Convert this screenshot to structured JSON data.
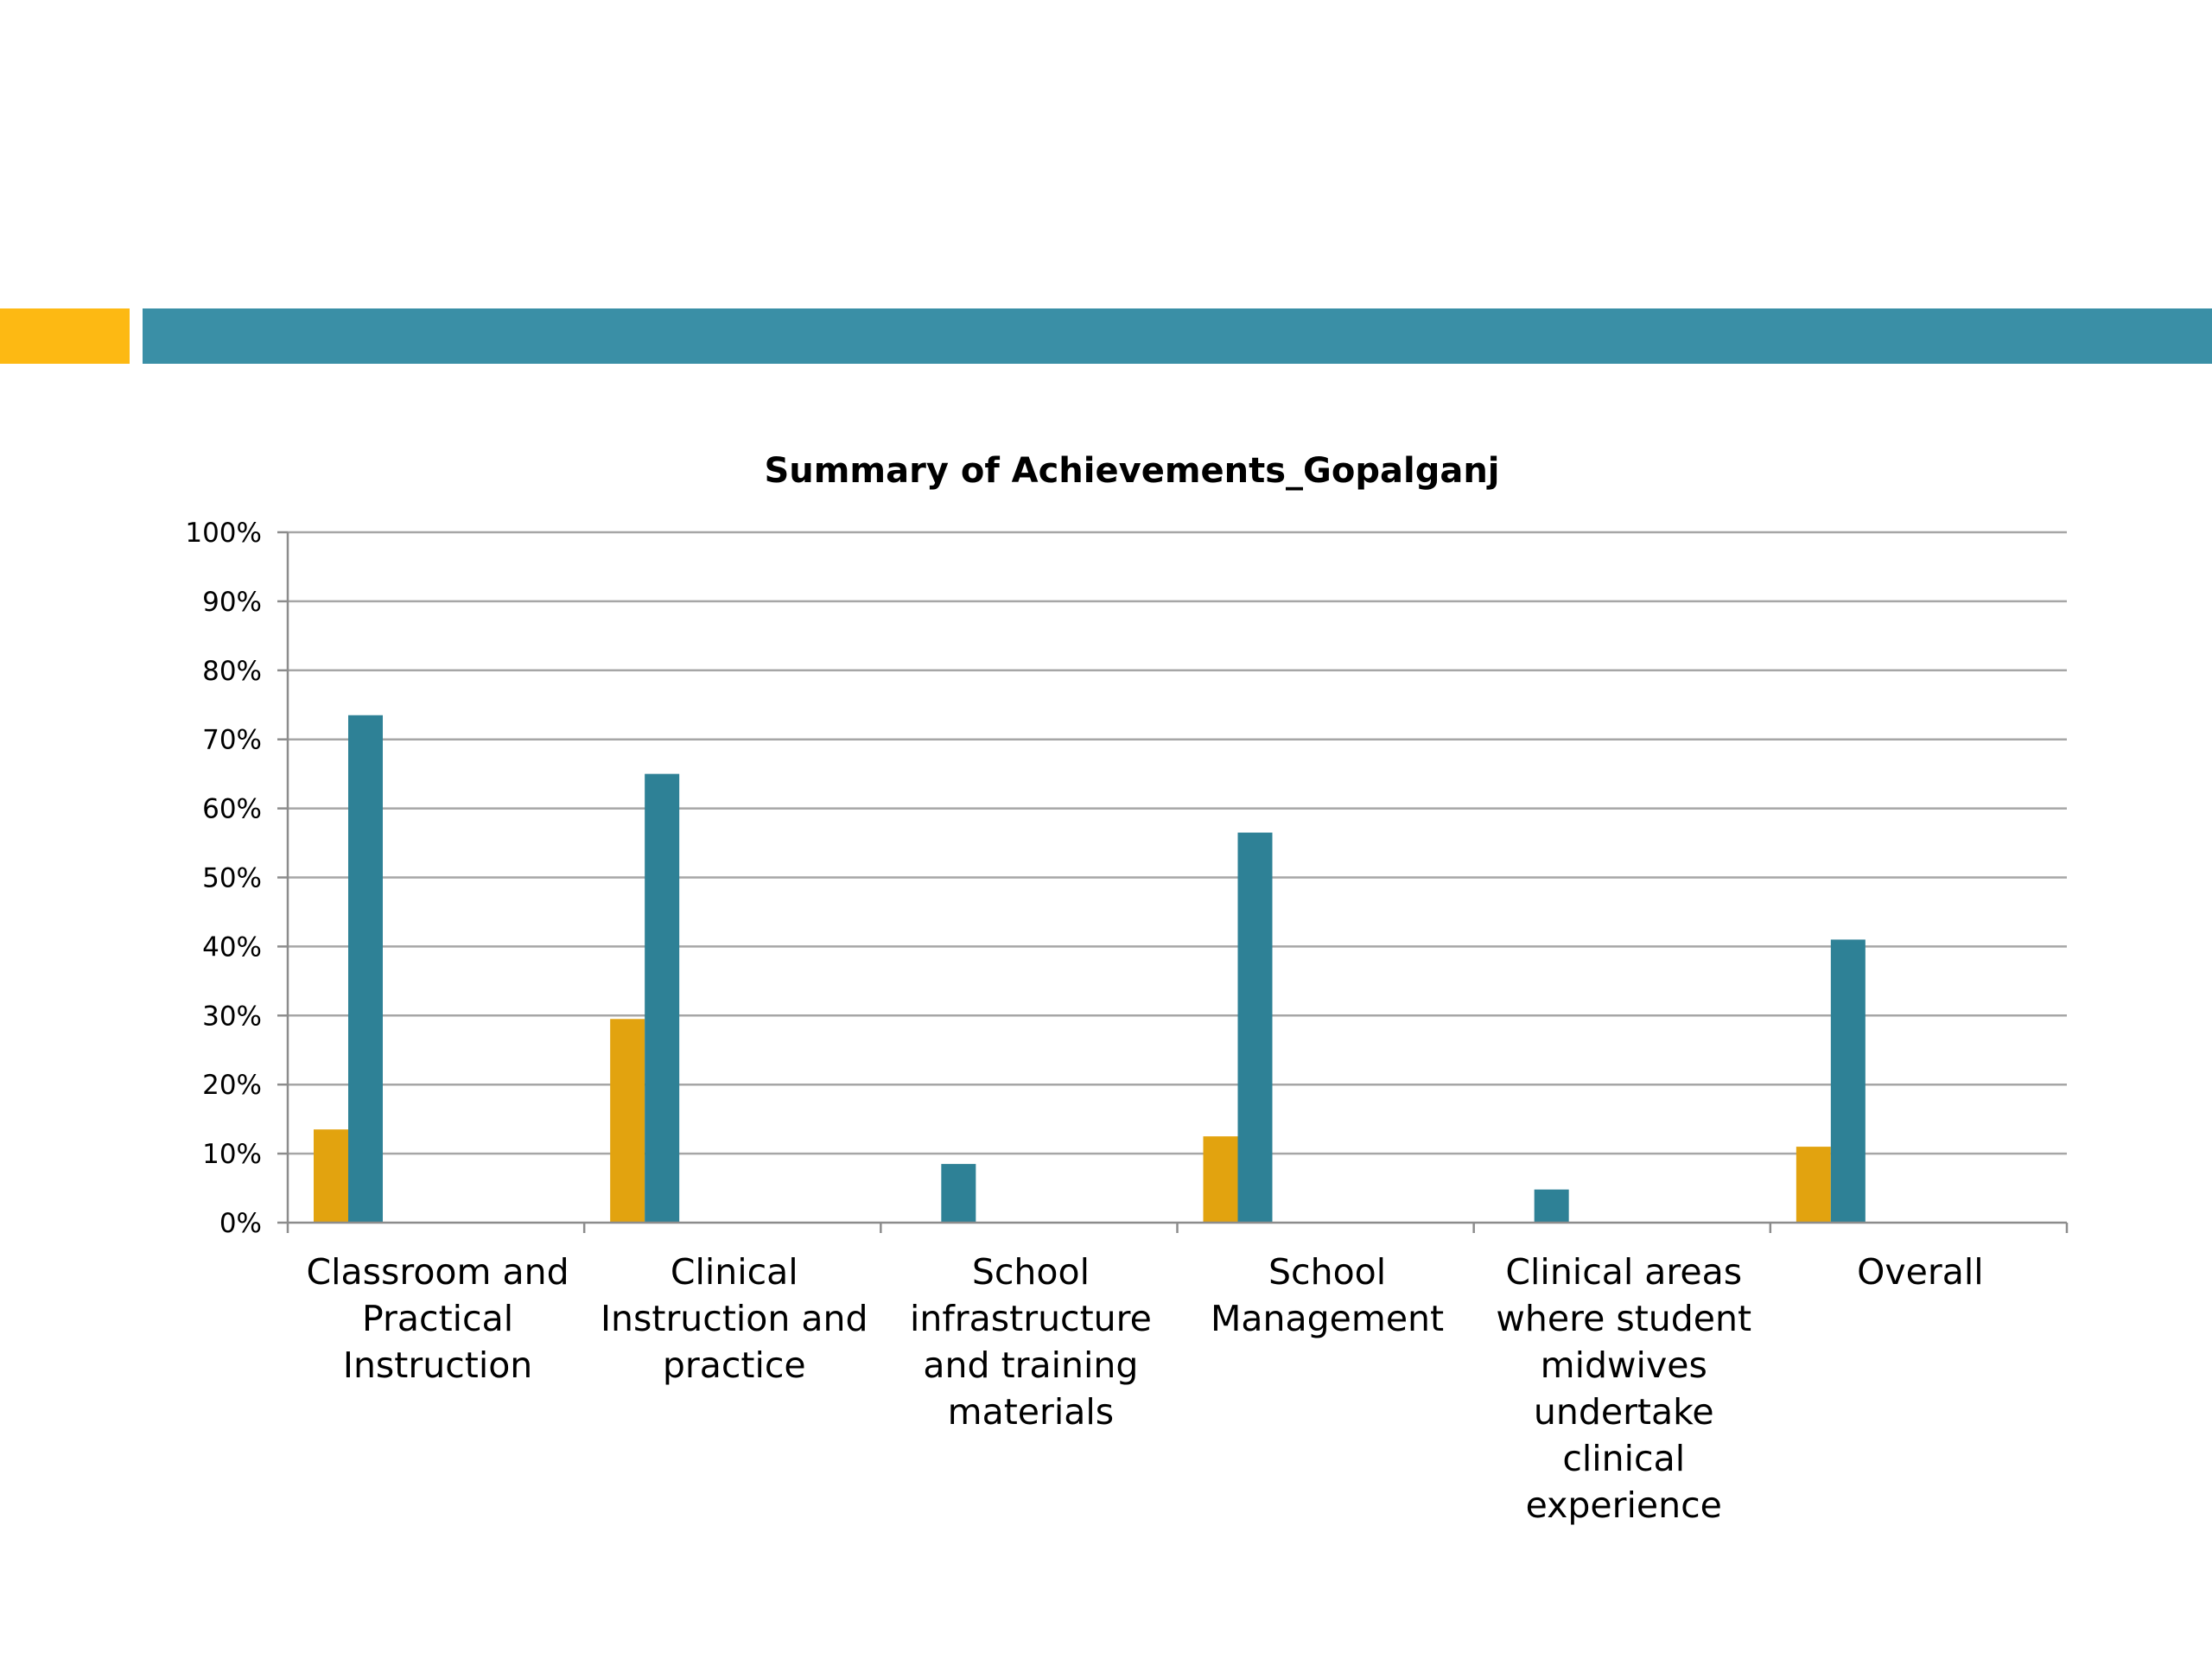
{
  "colors": {
    "accent": "#FDB913",
    "band": "#3A8FA6",
    "series_a": "#E2A30F",
    "series_b": "#2E8196",
    "grid": "#A6A6A6",
    "axis": "#8C8C8C"
  },
  "chart_data": {
    "type": "bar",
    "title": "Summary of Achievements_Gopalganj",
    "xlabel": "",
    "ylabel": "",
    "ylim": [
      0,
      1
    ],
    "yticks": [
      "0%",
      "10%",
      "20%",
      "30%",
      "40%",
      "50%",
      "60%",
      "70%",
      "80%",
      "90%",
      "100%"
    ],
    "grid": true,
    "legend": "none",
    "categories": [
      [
        "Classroom and",
        "Practical",
        "Instruction"
      ],
      [
        "Clinical",
        "Instruction and",
        "practice"
      ],
      [
        "School",
        "infrastructure",
        "and training",
        "materials"
      ],
      [
        "School",
        "Management"
      ],
      [
        "Clinical areas",
        "where student",
        "midwives",
        "undertake",
        "clinical",
        "experience"
      ],
      [
        "Overall"
      ]
    ],
    "series": [
      {
        "color": "#E2A30F",
        "values": [
          0.135,
          0.295,
          0.0,
          0.125,
          0.0,
          0.11
        ]
      },
      {
        "color": "#2E8196",
        "values": [
          0.735,
          0.65,
          0.085,
          0.565,
          0.048,
          0.41
        ]
      }
    ]
  }
}
